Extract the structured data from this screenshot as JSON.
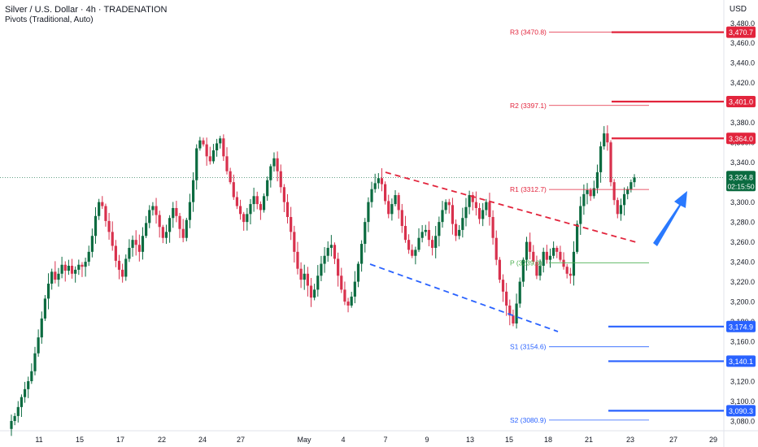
{
  "header": {
    "title": "Silver / U.S. Dollar · 4h · TRADENATION",
    "indicator": "Pivots (Traditional, Auto)",
    "currency": "USD"
  },
  "colors": {
    "up": "#0b6b40",
    "down": "#d8314d",
    "resistance": "#e2243c",
    "support": "#2962ff",
    "pivot": "#4caf50",
    "price_tag": "#0b6b40"
  },
  "chart_data": {
    "type": "candlestick",
    "symbol": "Silver / U.S. Dollar",
    "timeframe": "4h",
    "ylim": [
      3070,
      3490
    ],
    "y_ticks": [
      "3,480.0",
      "3,460.0",
      "3,440.0",
      "3,420.0",
      "3,400.0",
      "3,380.0",
      "3,360.0",
      "3,340.0",
      "3,320.0",
      "3,300.0",
      "3,280.0",
      "3,260.0",
      "3,240.0",
      "3,220.0",
      "3,200.0",
      "3,180.0",
      "3,160.0",
      "3,140.0",
      "3,120.0",
      "3,100.0",
      "3,080.0"
    ],
    "x_ticks": [
      "11",
      "15",
      "17",
      "22",
      "24",
      "27",
      "May",
      "4",
      "7",
      "9",
      "13",
      "15",
      "18",
      "21",
      "23",
      "27",
      "29"
    ],
    "last_price": {
      "value": "3,324.8",
      "countdown": "02:15:50"
    },
    "pivots": [
      {
        "label": "R3 (3470.8)",
        "value": 3470.8
      },
      {
        "label": "R2 (3397.1)",
        "value": 3397.1
      },
      {
        "label": "R1 (3312.7)",
        "value": 3312.7
      },
      {
        "label": "P (3239.0)",
        "value": 3239.0
      },
      {
        "label": "S1 (3154.6)",
        "value": 3154.6
      },
      {
        "label": "S2 (3080.9)",
        "value": 3080.9
      }
    ],
    "levels": [
      {
        "value": 3470.7,
        "label": "3,470.7",
        "kind": "resistance"
      },
      {
        "value": 3401.0,
        "label": "3,401.0",
        "kind": "resistance"
      },
      {
        "value": 3364.0,
        "label": "3,364.0",
        "kind": "resistance"
      },
      {
        "value": 3174.9,
        "label": "3,174.9",
        "kind": "support"
      },
      {
        "value": 3140.1,
        "label": "3,140.1",
        "kind": "support"
      },
      {
        "value": 3090.3,
        "label": "3,090.3",
        "kind": "support"
      }
    ],
    "closes": [
      3080,
      3085,
      3094,
      3104,
      3112,
      3120,
      3130,
      3148,
      3164,
      3183,
      3203,
      3218,
      3230,
      3222,
      3228,
      3237,
      3231,
      3236,
      3228,
      3232,
      3237,
      3235,
      3240,
      3250,
      3266,
      3286,
      3300,
      3296,
      3281,
      3270,
      3256,
      3241,
      3232,
      3225,
      3243,
      3254,
      3262,
      3257,
      3250,
      3266,
      3279,
      3292,
      3296,
      3287,
      3275,
      3264,
      3270,
      3284,
      3294,
      3286,
      3273,
      3264,
      3282,
      3300,
      3322,
      3354,
      3362,
      3358,
      3346,
      3341,
      3352,
      3359,
      3364,
      3346,
      3331,
      3320,
      3305,
      3296,
      3288,
      3280,
      3288,
      3298,
      3306,
      3298,
      3292,
      3306,
      3322,
      3336,
      3344,
      3331,
      3315,
      3300,
      3285,
      3270,
      3250,
      3233,
      3222,
      3228,
      3216,
      3204,
      3212,
      3226,
      3238,
      3246,
      3254,
      3257,
      3243,
      3226,
      3212,
      3200,
      3196,
      3205,
      3220,
      3238,
      3258,
      3280,
      3300,
      3313,
      3319,
      3324,
      3318,
      3301,
      3288,
      3298,
      3307,
      3292,
      3276,
      3262,
      3252,
      3246,
      3252,
      3264,
      3270,
      3272,
      3262,
      3254,
      3266,
      3280,
      3292,
      3300,
      3297,
      3278,
      3266,
      3272,
      3284,
      3295,
      3307,
      3300,
      3294,
      3283,
      3292,
      3300,
      3285,
      3264,
      3242,
      3222,
      3210,
      3196,
      3186,
      3178,
      3198,
      3220,
      3242,
      3260,
      3250,
      3240,
      3226,
      3236,
      3250,
      3242,
      3246,
      3254,
      3250,
      3242,
      3235,
      3228,
      3226,
      3250,
      3278,
      3296,
      3308,
      3312,
      3306,
      3314,
      3330,
      3356,
      3369,
      3360,
      3320,
      3302,
      3288,
      3297,
      3308,
      3313,
      3320,
      3324.8
    ],
    "annotation": "arrow-up"
  }
}
